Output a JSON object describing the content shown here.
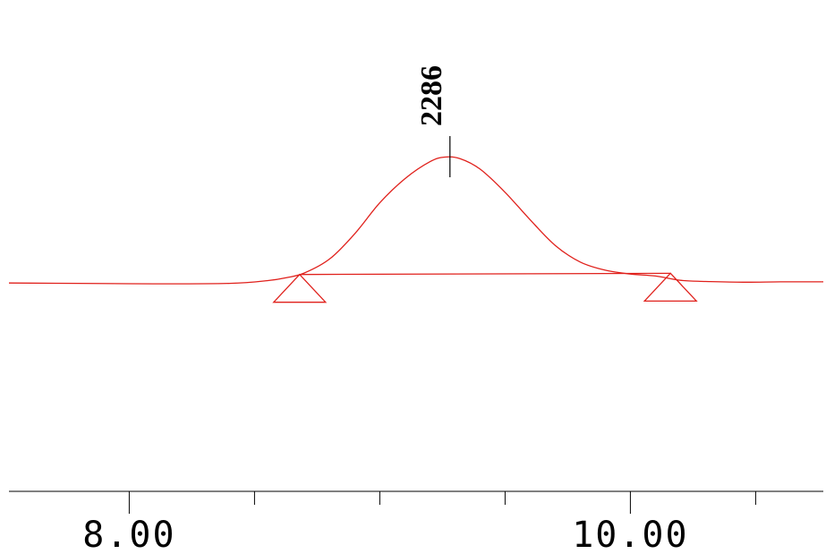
{
  "chart_data": {
    "type": "line",
    "title": "",
    "xlabel": "",
    "ylabel": "",
    "xlim": [
      7.52,
      10.77
    ],
    "ylim": [
      0,
      100
    ],
    "grid": false,
    "axis": {
      "major_ticks": [
        8.0,
        10.0
      ],
      "major_tick_labels": [
        "8.00",
        "10.00"
      ],
      "minor_ticks": [
        8.5,
        9.0,
        9.5,
        10.5
      ]
    },
    "baseline_level": 47,
    "series": [
      {
        "color": "#e0201b",
        "points": [
          [
            7.52,
            47.3
          ],
          [
            7.8,
            47.2
          ],
          [
            8.1,
            47.1
          ],
          [
            8.4,
            47.2
          ],
          [
            8.55,
            47.9
          ],
          [
            8.63,
            48.7
          ],
          [
            8.7,
            49.9
          ],
          [
            8.8,
            53.5
          ],
          [
            8.9,
            60.0
          ],
          [
            9.0,
            68.0
          ],
          [
            9.1,
            74.2
          ],
          [
            9.2,
            78.6
          ],
          [
            9.26,
            79.8
          ],
          [
            9.32,
            79.4
          ],
          [
            9.4,
            76.7
          ],
          [
            9.5,
            70.7
          ],
          [
            9.6,
            63.6
          ],
          [
            9.7,
            57.0
          ],
          [
            9.8,
            52.7
          ],
          [
            9.9,
            50.6
          ],
          [
            10.0,
            49.6
          ],
          [
            10.1,
            49.1
          ],
          [
            10.2,
            48.0
          ],
          [
            10.3,
            47.7
          ],
          [
            10.45,
            47.5
          ],
          [
            10.6,
            47.6
          ],
          [
            10.77,
            47.6
          ]
        ]
      }
    ],
    "peaks": [
      {
        "label": "2286",
        "x": 9.28,
        "start": 8.68,
        "end": 10.16,
        "start_y": 49.5,
        "end_y": 49.8
      }
    ]
  }
}
